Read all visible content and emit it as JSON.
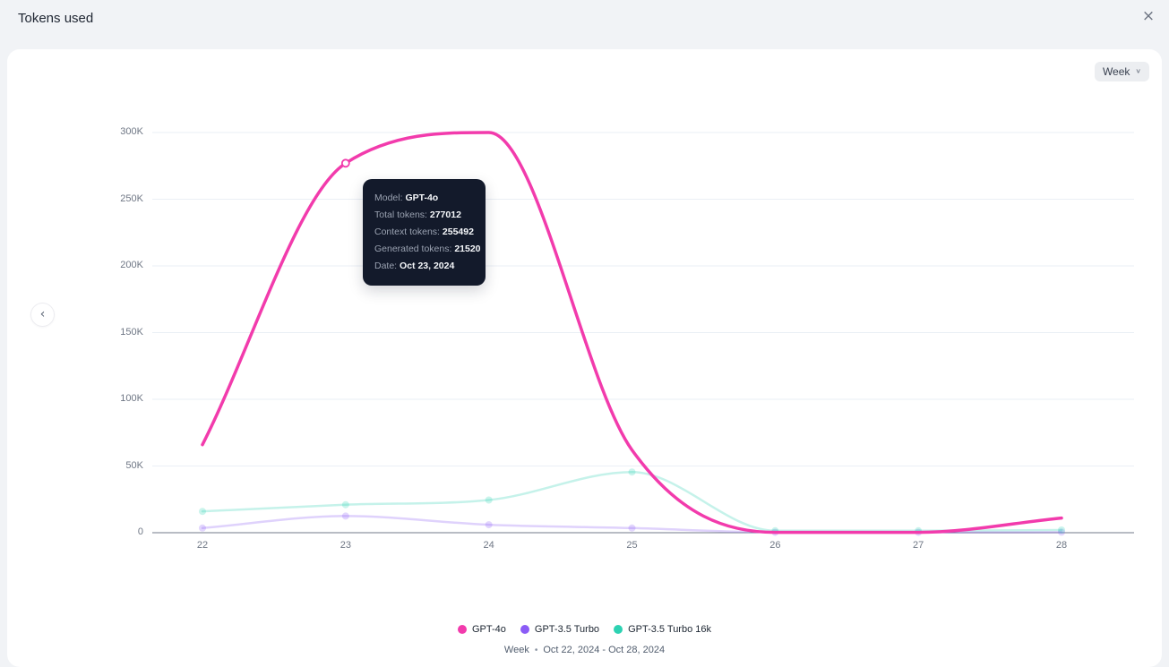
{
  "header": {
    "title": "Tokens used"
  },
  "icons": {
    "close": "×",
    "chevron_down": "∨",
    "chevron_left": "‹"
  },
  "toolbar": {
    "period_selector": {
      "value": "Week"
    }
  },
  "chart_data": {
    "type": "line",
    "x": [
      22,
      23,
      24,
      25,
      26,
      27,
      28
    ],
    "x_tick_labels": [
      "22",
      "23",
      "24",
      "25",
      "26",
      "27",
      "28"
    ],
    "y_ticks": [
      0,
      50000,
      100000,
      150000,
      200000,
      250000,
      300000
    ],
    "y_tick_labels": [
      "0",
      "50K",
      "100K",
      "150K",
      "200K",
      "250K",
      "300K"
    ],
    "ylim": [
      0,
      300000
    ],
    "grid": "horizontal",
    "legend_position": "bottom",
    "series": [
      {
        "name": "GPT-4o",
        "color": "#f23bac",
        "muted": false,
        "values": [
          66000,
          277012,
          300000,
          62000,
          300,
          300,
          11000
        ]
      },
      {
        "name": "GPT-3.5 Turbo",
        "color": "#8b5cf6",
        "muted": true,
        "values": [
          3500,
          12500,
          6000,
          3500,
          300,
          300,
          400
        ]
      },
      {
        "name": "GPT-3.5 Turbo 16k",
        "color": "#2dd2b2",
        "muted": true,
        "values": [
          16000,
          21000,
          24500,
          45500,
          1500,
          1500,
          2000
        ]
      }
    ],
    "hover_point": {
      "series": "GPT-4o",
      "x": 23
    }
  },
  "tooltip": {
    "rows": [
      {
        "label": "Model:",
        "value": "GPT-4o"
      },
      {
        "label": "Total tokens:",
        "value": "277012"
      },
      {
        "label": "Context tokens:",
        "value": "255492"
      },
      {
        "label": "Generated tokens:",
        "value": "21520"
      },
      {
        "label": "Date:",
        "value": "Oct 23, 2024"
      }
    ]
  },
  "footer": {
    "period": "Week",
    "separator": "•",
    "range": "Oct 22, 2024 - Oct 28, 2024"
  }
}
